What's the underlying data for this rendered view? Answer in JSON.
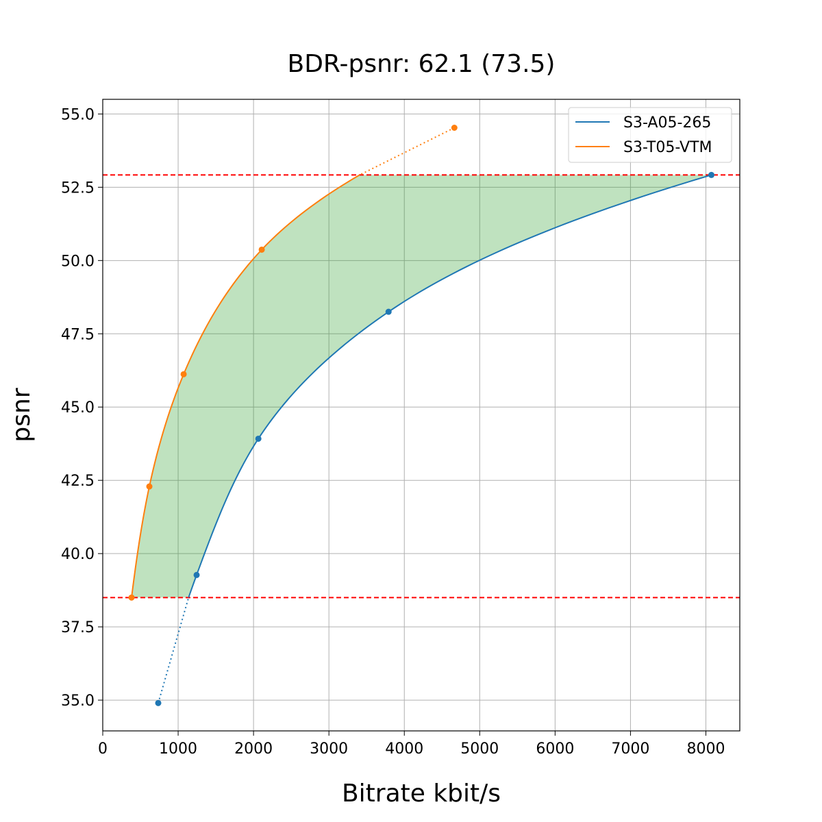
{
  "chart_data": {
    "type": "line",
    "title": "BDR-psnr: 62.1 (73.5)",
    "xlabel": "Bitrate kbit/s",
    "ylabel": "psnr",
    "xlim": [
      0,
      8450
    ],
    "ylim": [
      33.95,
      55.5
    ],
    "grid": true,
    "legend_position": "top-right",
    "x_ticks": [
      "0",
      "1000",
      "2000",
      "3000",
      "4000",
      "5000",
      "6000",
      "7000",
      "8000"
    ],
    "y_ticks": [
      "35.0",
      "37.5",
      "40.0",
      "42.5",
      "45.0",
      "47.5",
      "50.0",
      "52.5",
      "55.0"
    ],
    "series": [
      {
        "name": "S3-A05-265",
        "color": "#1f77b4",
        "x": [
          736,
          1245,
          2064,
          3791,
          8073
        ],
        "y": [
          34.9,
          39.27,
          43.92,
          48.25,
          52.92
        ]
      },
      {
        "name": "S3-T05-VTM",
        "color": "#ff7f0e",
        "x": [
          382,
          618,
          1073,
          2109,
          4664
        ],
        "y": [
          38.5,
          42.29,
          46.12,
          50.37,
          54.53
        ]
      }
    ],
    "reference_lines": {
      "y": [
        38.5,
        52.92
      ],
      "color": "#ff0000",
      "style": "dashed"
    },
    "fill_color": "#2ca02c"
  }
}
